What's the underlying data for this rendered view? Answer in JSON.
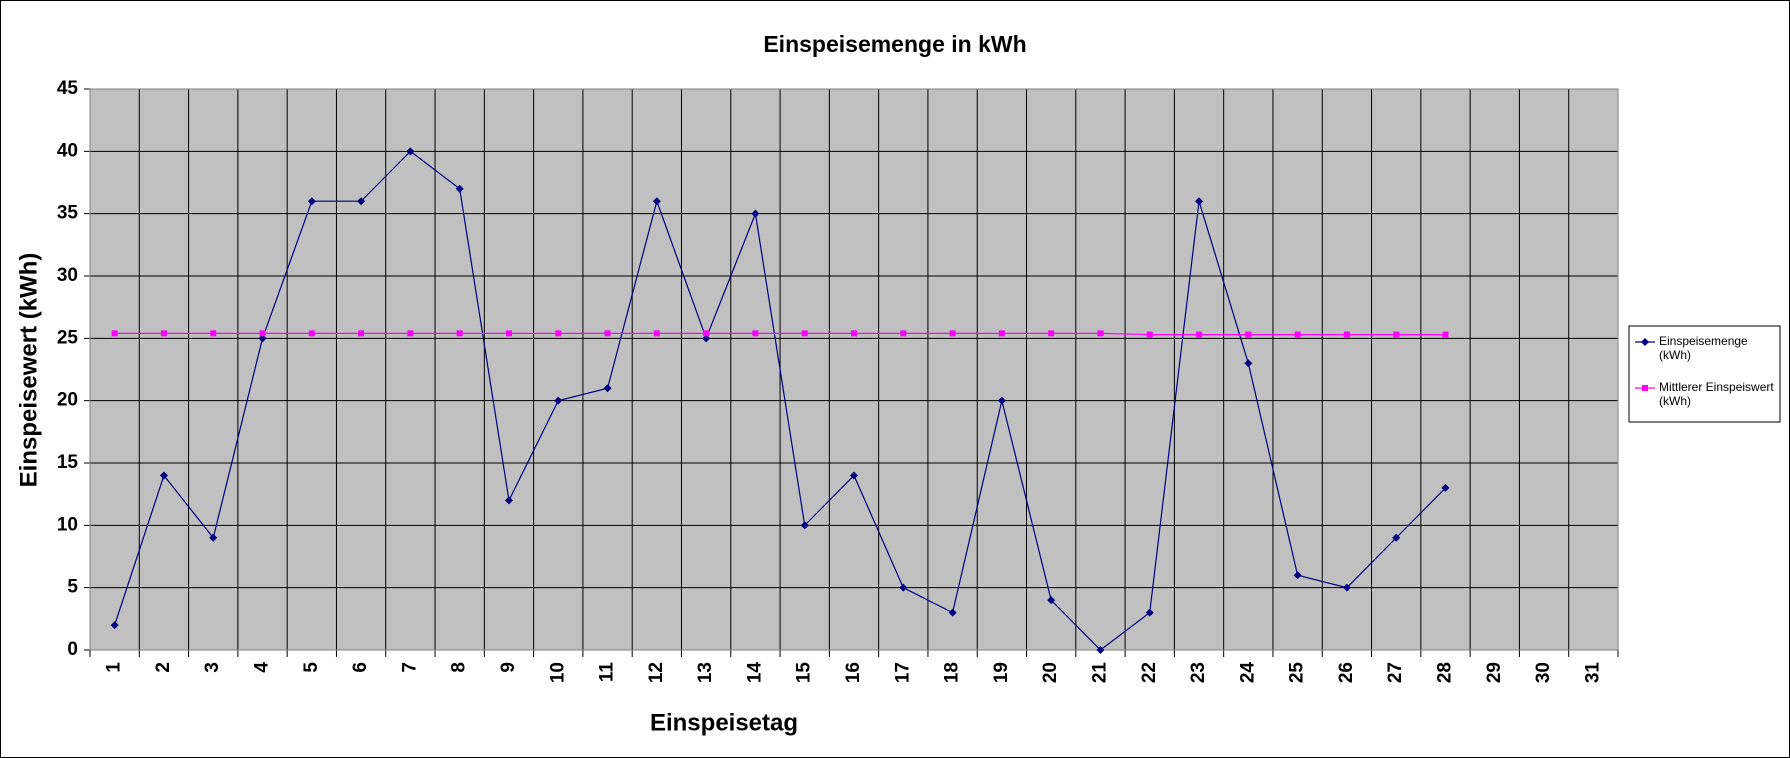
{
  "chart_data": {
    "type": "line",
    "title": "Einspeisemenge in kWh",
    "x_label": "Einspeisetag",
    "y_label": "Einspeisewert  (kWh)",
    "categories": [
      "1",
      "2",
      "3",
      "4",
      "5",
      "6",
      "7",
      "8",
      "9",
      "10",
      "11",
      "12",
      "13",
      "14",
      "15",
      "16",
      "17",
      "18",
      "19",
      "20",
      "21",
      "22",
      "23",
      "24",
      "25",
      "26",
      "27",
      "28",
      "29",
      "30",
      "31"
    ],
    "series": [
      {
        "name": "Einspeisemenge (kWh)",
        "color": "#000080",
        "marker": "diamond",
        "values": [
          2,
          14,
          9,
          25,
          36,
          36,
          40,
          37,
          12,
          20,
          21,
          36,
          25,
          35,
          10,
          14,
          5,
          3,
          20,
          4,
          0,
          3,
          36,
          23,
          6,
          5,
          9,
          13,
          null,
          null,
          null
        ]
      },
      {
        "name": "Mittlerer Einspeiswert (kWh)",
        "color": "#ff00ff",
        "marker": "square",
        "values": [
          25.4,
          25.4,
          25.4,
          25.4,
          25.4,
          25.4,
          25.4,
          25.4,
          25.4,
          25.4,
          25.4,
          25.4,
          25.4,
          25.4,
          25.4,
          25.4,
          25.4,
          25.4,
          25.4,
          25.4,
          25.4,
          25.3,
          25.3,
          25.3,
          25.3,
          25.3,
          25.3,
          25.3,
          null,
          null,
          null
        ]
      }
    ],
    "ylim": [
      0,
      45
    ],
    "yticks": [
      0,
      5,
      10,
      15,
      20,
      25,
      30,
      35,
      40,
      45
    ],
    "grid": true,
    "legend": "right"
  }
}
